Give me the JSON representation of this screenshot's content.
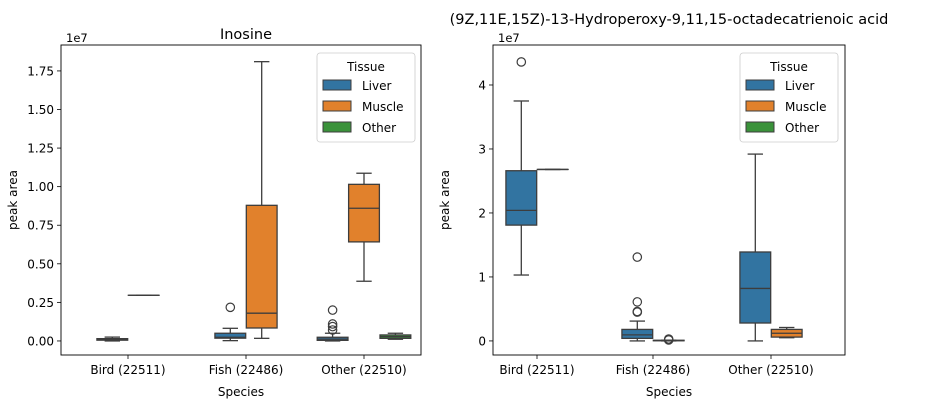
{
  "colors": {
    "Liver": "#3274a1",
    "Muscle": "#e1812c",
    "Other": "#3a923a",
    "line": "#3d3d3d"
  },
  "chart_data": [
    {
      "type": "box",
      "title": "Inosine",
      "xlabel": "Species",
      "ylabel": "peak area",
      "y_scale_label": "1e7",
      "ylim": [
        -0.091,
        1.918
      ],
      "yticks": [
        0,
        0.25,
        0.5,
        0.75,
        1.0,
        1.25,
        1.5,
        1.75
      ],
      "ytick_labels": [
        "0.00",
        "0.25",
        "0.50",
        "0.75",
        "1.00",
        "1.25",
        "1.50",
        "1.75"
      ],
      "categories": [
        "Bird (22511)",
        "Fish (22486)",
        "Other (22510)"
      ],
      "legend": {
        "title": "Tissue",
        "entries": [
          "Liver",
          "Muscle",
          "Other"
        ],
        "placement": "top-right"
      },
      "groups": [
        {
          "category": "Bird (22511)",
          "boxes": [
            {
              "hue": "Liver",
              "whislo": 0.0,
              "q1": 0.005,
              "med": 0.01,
              "q3": 0.015,
              "whishi": 0.025,
              "fliers": []
            },
            {
              "hue": "Muscle",
              "whislo": 0.296,
              "q1": 0.296,
              "med": 0.296,
              "q3": 0.296,
              "whishi": 0.296,
              "fliers": []
            }
          ]
        },
        {
          "category": "Fish (22486)",
          "boxes": [
            {
              "hue": "Liver",
              "whislo": 0.002,
              "q1": 0.018,
              "med": 0.024,
              "q3": 0.05,
              "whishi": 0.082,
              "fliers": [
                0.218
              ]
            },
            {
              "hue": "Muscle",
              "whislo": 0.017,
              "q1": 0.084,
              "med": 0.18,
              "q3": 0.879,
              "whishi": 1.81,
              "fliers": []
            }
          ]
        },
        {
          "category": "Other (22510)",
          "boxes": [
            {
              "hue": "Liver",
              "whislo": 0.0,
              "q1": 0.004,
              "med": 0.012,
              "q3": 0.024,
              "whishi": 0.05,
              "fliers": [
                0.2,
                0.11,
                0.093,
                0.071
              ]
            },
            {
              "hue": "Muscle",
              "whislo": 0.387,
              "q1": 0.642,
              "med": 0.86,
              "q3": 1.015,
              "whishi": 1.087,
              "fliers": []
            },
            {
              "hue": "Other",
              "whislo": 0.011,
              "q1": 0.017,
              "med": 0.028,
              "q3": 0.039,
              "whishi": 0.05,
              "fliers": []
            }
          ]
        }
      ]
    },
    {
      "type": "box",
      "title": "(9Z,11E,15Z)-13-Hydroperoxy-9,11,15-octadecatrienoic acid",
      "xlabel": "Species",
      "ylabel": "peak area",
      "y_scale_label": "1e7",
      "ylim": [
        -0.22,
        4.625
      ],
      "yticks": [
        0,
        1,
        2,
        3,
        4
      ],
      "ytick_labels": [
        "0",
        "1",
        "2",
        "3",
        "4"
      ],
      "categories": [
        "Bird (22511)",
        "Fish (22486)",
        "Other (22510)"
      ],
      "legend": {
        "title": "Tissue",
        "entries": [
          "Liver",
          "Muscle",
          "Other"
        ],
        "placement": "top-right"
      },
      "groups": [
        {
          "category": "Bird (22511)",
          "boxes": [
            {
              "hue": "Liver",
              "whislo": 1.03,
              "q1": 1.81,
              "med": 2.04,
              "q3": 2.66,
              "whishi": 3.75,
              "fliers": [
                4.36
              ]
            },
            {
              "hue": "Muscle",
              "whislo": 2.68,
              "q1": 2.68,
              "med": 2.68,
              "q3": 2.68,
              "whishi": 2.68,
              "fliers": []
            }
          ]
        },
        {
          "category": "Fish (22486)",
          "boxes": [
            {
              "hue": "Liver",
              "whislo": 0.0,
              "q1": 0.04,
              "med": 0.094,
              "q3": 0.18,
              "whishi": 0.31,
              "fliers": [
                1.31,
                0.61,
                0.46,
                0.45
              ]
            },
            {
              "hue": "Muscle",
              "whislo": 0.0,
              "q1": 0.003,
              "med": 0.006,
              "q3": 0.01,
              "whishi": 0.012,
              "fliers": [
                0.03,
                0.015
              ]
            }
          ]
        },
        {
          "category": "Other (22510)",
          "boxes": [
            {
              "hue": "Liver",
              "whislo": 0.0,
              "q1": 0.28,
              "med": 0.82,
              "q3": 1.39,
              "whishi": 2.92,
              "fliers": []
            },
            {
              "hue": "Muscle",
              "whislo": 0.05,
              "q1": 0.06,
              "med": 0.12,
              "q3": 0.18,
              "whishi": 0.21,
              "fliers": []
            }
          ]
        }
      ]
    }
  ]
}
